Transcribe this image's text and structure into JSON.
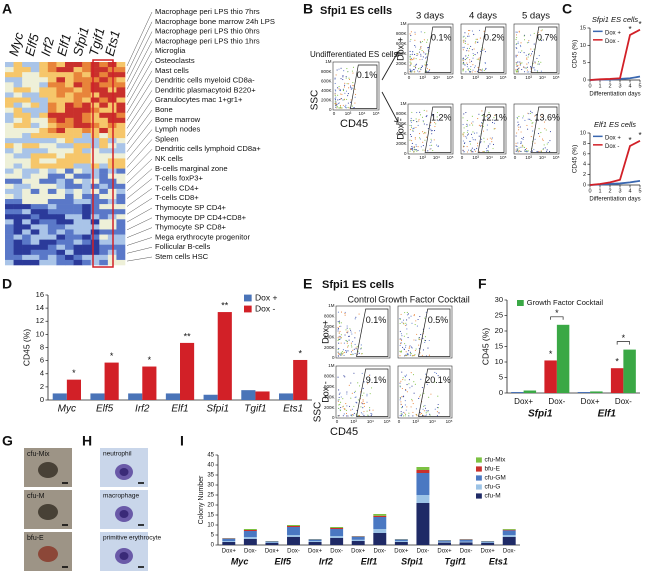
{
  "panel_labels": [
    "A",
    "B",
    "C",
    "D",
    "E",
    "F",
    "G",
    "H",
    "I"
  ],
  "heatmap": {
    "genes": [
      "Myc",
      "Elf5",
      "Irf2",
      "Elf1",
      "Sfpi1",
      "Tgif1",
      "Ets1"
    ],
    "cell_types": [
      "Macrophage peri LPS thio 7hrs",
      "Macrophage bone marrow 24h LPS",
      "Macrophage peri LPS thio 0hrs",
      "Macrophage peri LPS thio 1hrs",
      "Microglia",
      "Osteoclasts",
      "Mast cells",
      "Dendritic cells myeloid CD8a-",
      "Dendritic plasmacytoid B220+",
      "Granulocytes mac 1+gr1+",
      "Bone",
      "Bone marrow",
      "Lymph nodes",
      "Spleen",
      "Dendritic cells lymphoid CD8a+",
      "NK cells",
      "B-cells marginal zone",
      "T-cells foxP3+",
      "T-cells CD4+",
      "T-cells CD8+",
      "Thymocyte SP CD4+",
      "Thymocyte DP CD4+CD8+",
      "Thymocyte SP CD8+",
      "Mega erythrocyte progenitor",
      "Follicular B-cells",
      "Stem cells HSC"
    ]
  },
  "flow_b": {
    "title": "Sfpi1 ES cells",
    "undiff_label": "Undifferentiated ES cells",
    "undiff_pct": "0.1%",
    "days": [
      "3 days",
      "4 days",
      "5 days"
    ],
    "rows": [
      "Dox +",
      "Dox -"
    ],
    "pcts": [
      [
        "0.1%",
        "0.2%",
        "0.7%"
      ],
      [
        "1.2%",
        "12.1%",
        "13.6%"
      ]
    ],
    "ylabel": "SSC",
    "xlabel": "CD45",
    "axis_y": [
      "0",
      "200K",
      "400K",
      "600K",
      "800K",
      "1M"
    ],
    "axis_x": [
      "0",
      "10³",
      "10⁴",
      "10⁵"
    ]
  },
  "flow_e": {
    "title": "Sfpi1 ES cells",
    "columns": [
      "Control",
      "Growth Factor Cocktail"
    ],
    "rows": [
      "Dox +",
      "Dox -"
    ],
    "pcts": [
      [
        "0.1%",
        "0.5%"
      ],
      [
        "9.1%",
        "20.1%"
      ]
    ],
    "ylabel": "SSC",
    "xlabel": "CD45",
    "axis_y": [
      "0",
      "200K",
      "400K",
      "600K",
      "800K",
      "1M"
    ],
    "axis_x": [
      "0",
      "10³",
      "10⁴",
      "10⁵"
    ]
  },
  "colonies": [
    "cfu-Mix",
    "cfu-M",
    "bfu-E"
  ],
  "cells": [
    "neutrophil",
    "macrophage",
    "primitive erythrocyte"
  ],
  "chart_data": [
    {
      "type": "line",
      "title": "Sfpi1 ES cells",
      "x": [
        0,
        1,
        2,
        3,
        4,
        5
      ],
      "xlim": [
        0,
        5
      ],
      "xticks": [
        0,
        1,
        2,
        3,
        4,
        5
      ],
      "ylim": [
        0,
        15
      ],
      "yticks": [
        0,
        5,
        10,
        15
      ],
      "xlabel": "Differentiation days",
      "ylabel": "CD45 (%)",
      "legend": "upper left",
      "series": [
        {
          "name": "Dox +",
          "color": "#3a67b0",
          "values": [
            0,
            0.1,
            0.1,
            0.3,
            0.5,
            1
          ]
        },
        {
          "name": "Dox -",
          "color": "#d22027",
          "values": [
            0,
            0.2,
            0.3,
            0.5,
            13,
            14.5
          ],
          "annotations": [
            null,
            null,
            null,
            null,
            "*",
            "*"
          ]
        }
      ]
    },
    {
      "type": "line",
      "title": "Elf1 ES cells",
      "x": [
        0,
        1,
        2,
        3,
        4,
        5
      ],
      "xlim": [
        0,
        5
      ],
      "xticks": [
        0,
        1,
        2,
        3,
        4,
        5
      ],
      "ylim": [
        0,
        10
      ],
      "yticks": [
        0,
        2,
        4,
        6,
        8,
        10
      ],
      "xlabel": "Differentiation days",
      "ylabel": "CD45 (%)",
      "legend": "upper left",
      "series": [
        {
          "name": "Dox +",
          "color": "#3a67b0",
          "values": [
            0,
            0.1,
            0.2,
            0.3,
            0.5,
            0.8
          ]
        },
        {
          "name": "Dox -",
          "color": "#d22027",
          "values": [
            0,
            0.2,
            0.5,
            1,
            7.5,
            8.5
          ],
          "annotations": [
            null,
            null,
            null,
            null,
            "*",
            "*"
          ]
        }
      ]
    },
    {
      "type": "bar",
      "categories": [
        "Myc",
        "Elf5",
        "Irf2",
        "Elf1",
        "Sfpi1",
        "Tgif1",
        "Ets1"
      ],
      "ylim": [
        0,
        16
      ],
      "yticks": [
        0,
        2,
        4,
        6,
        8,
        10,
        12,
        14,
        16
      ],
      "ylabel": "CD45 (%)",
      "legend": "upper right",
      "series": [
        {
          "name": "Dox +",
          "color": "#4a74b8",
          "values": [
            1,
            1,
            1,
            1,
            0.8,
            1.5,
            1
          ]
        },
        {
          "name": "Dox -",
          "color": "#d22027",
          "values": [
            3.1,
            5.7,
            5.1,
            8.7,
            13.4,
            1.3,
            6.1
          ],
          "annotations": [
            "*",
            "*",
            "*",
            "**",
            "**",
            null,
            "*"
          ]
        }
      ]
    },
    {
      "type": "bar",
      "categories": [
        "Dox+",
        "Dox-",
        "Dox+",
        "Dox-"
      ],
      "groups": [
        "Sfpi1",
        "Elf1"
      ],
      "ylim": [
        0,
        30
      ],
      "yticks": [
        0,
        5,
        10,
        15,
        20,
        25,
        30
      ],
      "ylabel": "CD45 (%)",
      "legend": "upper left",
      "series": [
        {
          "colors": [
            "#3a67b0",
            "#d22027",
            "#3a67b0",
            "#d22027"
          ],
          "values": [
            0.3,
            10.5,
            0.3,
            8
          ],
          "annotations": [
            null,
            "*",
            null,
            "*"
          ]
        },
        {
          "name": "Growth Factor Cocktail",
          "color": "#3aa845",
          "values": [
            0.8,
            22,
            0.5,
            14
          ]
        }
      ],
      "brackets": [
        null,
        "*",
        null,
        "*"
      ]
    },
    {
      "type": "stacked",
      "categories": [
        "Dox+",
        "Dox-",
        "Dox+",
        "Dox-",
        "Dox+",
        "Dox-",
        "Dox+",
        "Dox-",
        "Dox+",
        "Dox-",
        "Dox+",
        "Dox-",
        "Dox+",
        "Dox-"
      ],
      "groups": [
        "Myc",
        "Elf5",
        "Irf2",
        "Elf1",
        "Sfpi1",
        "Tgif1",
        "Ets1"
      ],
      "ylim": [
        0,
        45
      ],
      "yticks": [
        0,
        5,
        10,
        15,
        20,
        25,
        30,
        35,
        40,
        45
      ],
      "ylabel": "Colony Number",
      "legend": "upper right",
      "series": [
        {
          "name": "cfu-M",
          "color": "#1f2a66",
          "values": [
            1.5,
            3,
            1,
            4,
            1.5,
            3.5,
            2,
            6,
            1.5,
            21,
            1.2,
            1.3,
            1,
            4
          ]
        },
        {
          "name": "cfu-G",
          "color": "#9cc3e6",
          "values": [
            0.5,
            1,
            0.3,
            1,
            0.5,
            1,
            0.6,
            2,
            0.5,
            4,
            0.4,
            0.4,
            0.3,
            1
          ]
        },
        {
          "name": "cfu-GM",
          "color": "#4a78c2",
          "values": [
            1.2,
            3,
            0.5,
            4,
            0.8,
            3.5,
            1.6,
            6,
            0.8,
            11,
            0.7,
            1,
            0.5,
            2.3
          ]
        },
        {
          "name": "bfu-E",
          "color": "#c9302c",
          "values": [
            0.2,
            0.5,
            0.1,
            0.5,
            0.1,
            0.5,
            0.2,
            0.6,
            0.1,
            1.5,
            0.1,
            0.2,
            0.1,
            0.3
          ]
        },
        {
          "name": "cfu-Mix",
          "color": "#7cc142",
          "values": [
            0.1,
            0.5,
            0.1,
            0.5,
            0.1,
            0.5,
            0.1,
            0.9,
            0.1,
            1.5,
            0.1,
            0.1,
            0.1,
            0.4
          ]
        }
      ]
    }
  ]
}
